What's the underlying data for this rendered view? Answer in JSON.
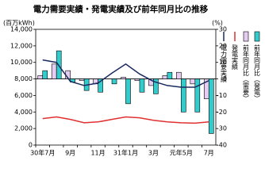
{
  "chart_data": {
    "type": "bar-line",
    "title": "電力需要実績・発電実績及び前年同月比の推移",
    "y_label": "(百万kWh)",
    "y2_label": "(%)",
    "categories": [
      "30年7月",
      null,
      "9月",
      null,
      "11月",
      null,
      "31年1月",
      null,
      "3月",
      null,
      "元年5月",
      null,
      "7月"
    ],
    "ylim": [
      0,
      14000
    ],
    "yticks": [
      0,
      {
        "value": 2000,
        "label": "2,000"
      },
      {
        "value": 4000,
        "label": "4,000"
      },
      {
        "value": 6000,
        "label": "6,000"
      },
      {
        "value": 8000,
        "label": "8,000"
      },
      {
        "value": 10000,
        "label": "10,000"
      },
      {
        "value": 12000,
        "label": "12,000"
      },
      {
        "value": 14000,
        "label": "14,000"
      }
    ],
    "y2lim": [
      -40,
      30
    ],
    "y2ticks": [
      -40,
      -30,
      -20,
      -10,
      0,
      10,
      20,
      30
    ],
    "series": [
      {
        "name": "電力需要実績",
        "type": "line",
        "color": "#1a2a5e",
        "values": [
          10300,
          10000,
          7700,
          7200,
          7500,
          8700,
          9800,
          8600,
          7700,
          7200,
          7000,
          7000,
          7800
        ]
      },
      {
        "name": "発電実績",
        "type": "line",
        "color": "#e03030",
        "values": [
          3200,
          3400,
          3100,
          2700,
          2800,
          3100,
          3400,
          3300,
          3000,
          2800,
          2700,
          2650,
          2800
        ]
      },
      {
        "name": "前年同月比（需要）",
        "type": "bar",
        "axis": "y2",
        "color": "#e6ccf0",
        "values": [
          2,
          9,
          5,
          -1,
          -3,
          0,
          1,
          -1,
          -4,
          2,
          4,
          -3,
          -12
        ]
      },
      {
        "name": "前年同月比（発電）",
        "type": "bar",
        "axis": "y2",
        "color": "#33cccc",
        "values": [
          5,
          17,
          -2,
          -7,
          -8,
          -3,
          -15,
          -8,
          -9,
          4,
          -20,
          -20,
          -33
        ]
      }
    ]
  }
}
